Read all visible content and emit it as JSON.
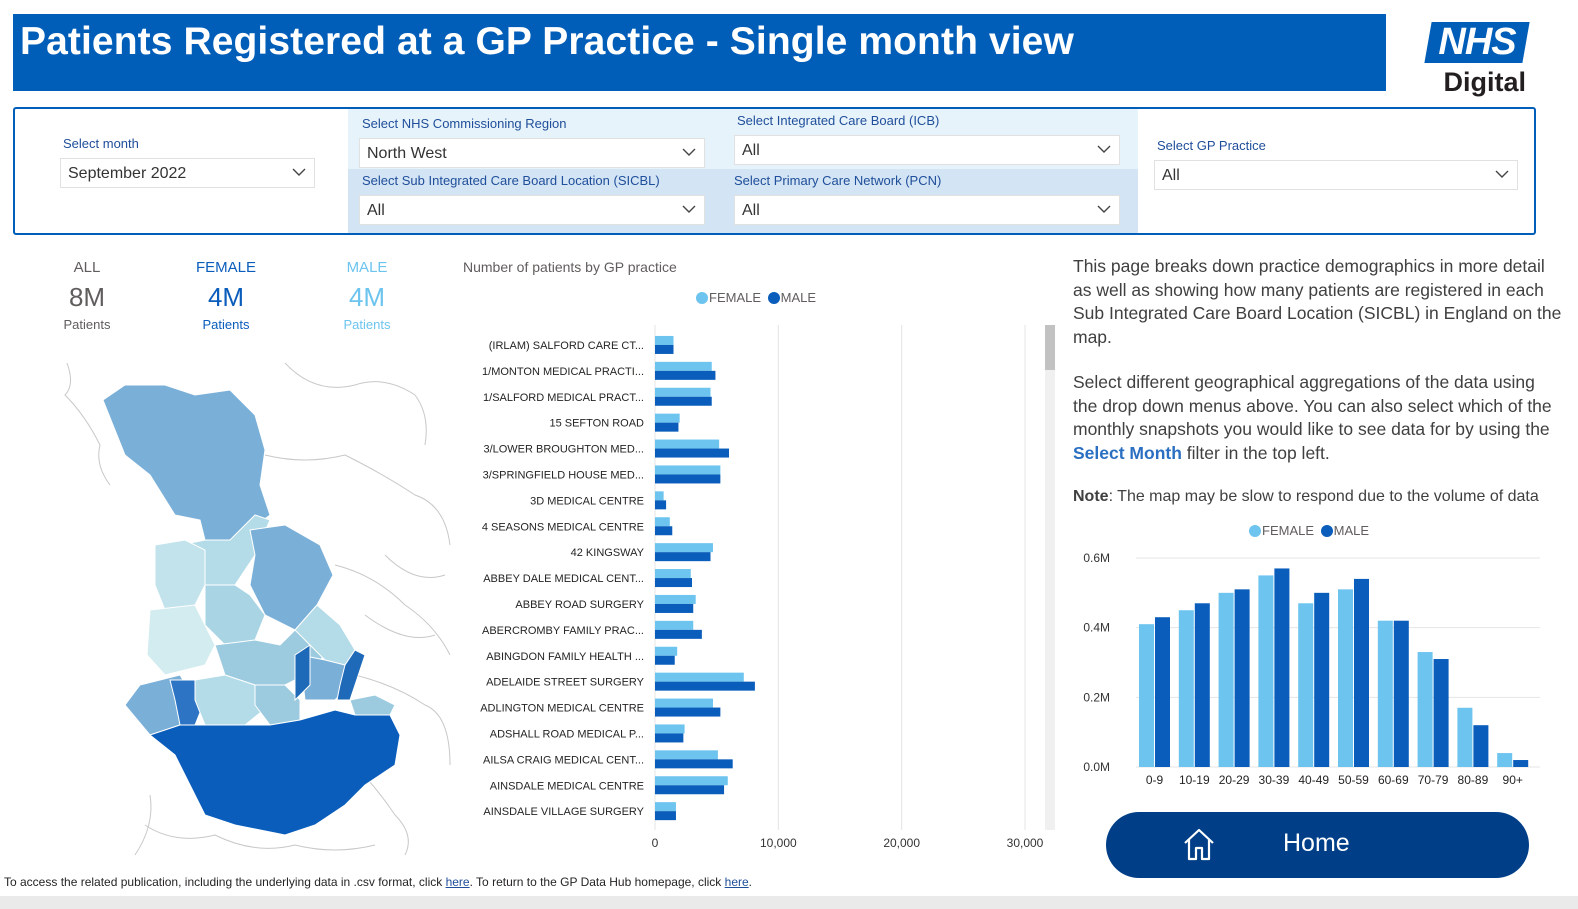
{
  "header": {
    "title": "Patients Registered at a GP Practice - Single month view"
  },
  "logo": {
    "nhs": "NHS",
    "digital": "Digital"
  },
  "filters": {
    "month": {
      "label": "Select month",
      "value": "September 2022"
    },
    "region": {
      "label": "Select NHS Commissioning Region",
      "value": "North West"
    },
    "icb": {
      "label": "Select Integrated Care Board (ICB)",
      "value": "All"
    },
    "sicbl": {
      "label": "Select Sub Integrated Care Board Location (SICBL)",
      "value": "All"
    },
    "pcn": {
      "label": "Select Primary Care Network (PCN)",
      "value": "All"
    },
    "practice": {
      "label": "Select GP Practice",
      "value": "All"
    }
  },
  "kpis": {
    "all": {
      "label": "ALL",
      "value": "8M",
      "sub": "Patients"
    },
    "female": {
      "label": "FEMALE",
      "value": "4M",
      "sub": "Patients"
    },
    "male": {
      "label": "MALE",
      "value": "4M",
      "sub": "Patients"
    }
  },
  "colors": {
    "female": "#6CC4EF",
    "male": "#0A5DBB",
    "brand": "#005EB8",
    "home": "#003F87"
  },
  "chart_data": [
    {
      "type": "bar",
      "orientation": "horizontal",
      "title": "Number of patients by GP practice",
      "legend": "top",
      "categories": [
        "(IRLAM) SALFORD CARE CT...",
        "1/MONTON MEDICAL PRACTI...",
        "1/SALFORD MEDICAL PRACT...",
        "15 SEFTON ROAD",
        "3/LOWER BROUGHTON MED...",
        "3/SPRINGFIELD HOUSE MED...",
        "3D MEDICAL CENTRE",
        "4 SEASONS MEDICAL CENTRE",
        "42 KINGSWAY",
        "ABBEY DALE MEDICAL CENT...",
        "ABBEY ROAD SURGERY",
        "ABERCROMBY FAMILY PRAC...",
        "ABINGDON FAMILY HEALTH ...",
        "ADELAIDE STREET SURGERY",
        "ADLINGTON MEDICAL CENTRE",
        "ADSHALL ROAD MEDICAL P...",
        "AILSA CRAIG MEDICAL CENT...",
        "AINSDALE MEDICAL CENTRE",
        "AINSDALE VILLAGE SURGERY"
      ],
      "series": [
        {
          "name": "FEMALE",
          "values": [
            1500,
            4600,
            4500,
            2000,
            5200,
            5300,
            700,
            1200,
            4700,
            2900,
            3300,
            3100,
            1800,
            7200,
            4700,
            2400,
            5100,
            5900,
            1700
          ]
        },
        {
          "name": "MALE",
          "values": [
            1500,
            4900,
            4600,
            1900,
            6000,
            5300,
            900,
            1400,
            4500,
            3000,
            3100,
            3800,
            1600,
            8100,
            5300,
            2300,
            6300,
            5600,
            1700
          ]
        }
      ],
      "xlim": [
        0,
        30000
      ],
      "xticks": [
        "0",
        "10,000",
        "20,000",
        "30,000"
      ],
      "grid": true
    },
    {
      "type": "bar",
      "legend": "top",
      "categories": [
        "0-9",
        "10-19",
        "20-29",
        "30-39",
        "40-49",
        "50-59",
        "60-69",
        "70-79",
        "80-89",
        "90+"
      ],
      "series": [
        {
          "name": "FEMALE",
          "values": [
            0.41,
            0.45,
            0.5,
            0.55,
            0.47,
            0.51,
            0.42,
            0.33,
            0.17,
            0.04
          ]
        },
        {
          "name": "MALE",
          "values": [
            0.43,
            0.47,
            0.51,
            0.57,
            0.5,
            0.54,
            0.42,
            0.31,
            0.12,
            0.02
          ]
        }
      ],
      "ylim": [
        0,
        0.6
      ],
      "yticks": [
        "0.0M",
        "0.2M",
        "0.4M",
        "0.6M"
      ],
      "grid": true
    }
  ],
  "description": {
    "p1": "This page breaks down practice demographics in more detail as well as showing how many patients are registered in each Sub Integrated Care Board Location (SICBL) in England on the map.",
    "p2a": "Select different geographical aggregations of the data using the drop down menus above. You can also select which of the monthly snapshots you would like to see data for by using the ",
    "p2link": "Select Month",
    "p2b": " filter in the top left.",
    "note_label": "Note",
    "note_text": ": The map may be slow to respond due to the volume of data"
  },
  "home": {
    "label": "Home"
  },
  "footer": {
    "t1": "To access the related publication, including the underlying data in .csv format, click ",
    "link1": "here",
    "t2": ". To return to the GP Data Hub homepage, click ",
    "link2": "here",
    "t3": "."
  }
}
